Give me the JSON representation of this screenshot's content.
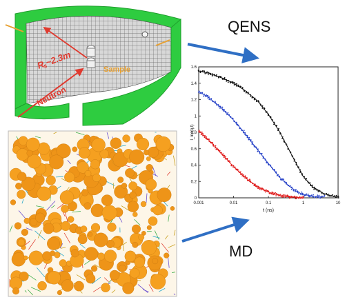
{
  "labels": {
    "qens": "QENS",
    "md": "MD",
    "radius": "R  ~2.3m",
    "radius_sub": "s",
    "neutron": "Neutron",
    "sample": "Sample"
  },
  "colors": {
    "detector_green": "#2ecc40",
    "detector_green_dark": "#1f9e2c",
    "arrow_blue": "#2f6fc4",
    "neutron_red": "#e03a2f",
    "sample_orange": "#e8a030",
    "atom_orange": "#f5a020",
    "curve_black": "#111111",
    "curve_blue": "#2a45c8",
    "curve_red": "#e02020"
  },
  "icons": {
    "detector": "cylindrical-detector-icon",
    "md_box": "molecular-simulation-box"
  },
  "chart_data": {
    "type": "scatter",
    "x_scale": "log",
    "xlim": [
      0.001,
      10
    ],
    "ylim": [
      0,
      1.6
    ],
    "xlabel": "t (ns)",
    "ylabel": "I_inc(q,t)",
    "x_ticks": [
      "0.001",
      "0.01",
      "0.1",
      "1",
      "10"
    ],
    "y_ticks": [
      "0",
      "0.2",
      "0.4",
      "0.6",
      "0.8",
      "1",
      "1.2",
      "1.4",
      "1.6"
    ],
    "series": [
      {
        "color": "#111111",
        "x": [
          0.001,
          0.002,
          0.005,
          0.01,
          0.02,
          0.05,
          0.1,
          0.2,
          0.4,
          0.7,
          1,
          2,
          4,
          7,
          10
        ],
        "values": [
          1.55,
          1.52,
          1.46,
          1.4,
          1.32,
          1.18,
          1.02,
          0.82,
          0.58,
          0.38,
          0.26,
          0.12,
          0.05,
          0.02,
          0.01
        ]
      },
      {
        "color": "#2a45c8",
        "x": [
          0.001,
          0.002,
          0.005,
          0.01,
          0.02,
          0.05,
          0.1,
          0.2,
          0.4,
          0.7,
          1,
          2,
          4
        ],
        "values": [
          1.3,
          1.22,
          1.08,
          0.95,
          0.8,
          0.58,
          0.42,
          0.26,
          0.14,
          0.07,
          0.04,
          0.02,
          0.01
        ]
      },
      {
        "color": "#e02020",
        "x": [
          0.001,
          0.002,
          0.005,
          0.01,
          0.02,
          0.05,
          0.1,
          0.2,
          0.4,
          0.7,
          1
        ],
        "values": [
          0.82,
          0.7,
          0.52,
          0.38,
          0.26,
          0.13,
          0.07,
          0.03,
          0.01,
          0.005,
          0.0
        ]
      }
    ]
  }
}
